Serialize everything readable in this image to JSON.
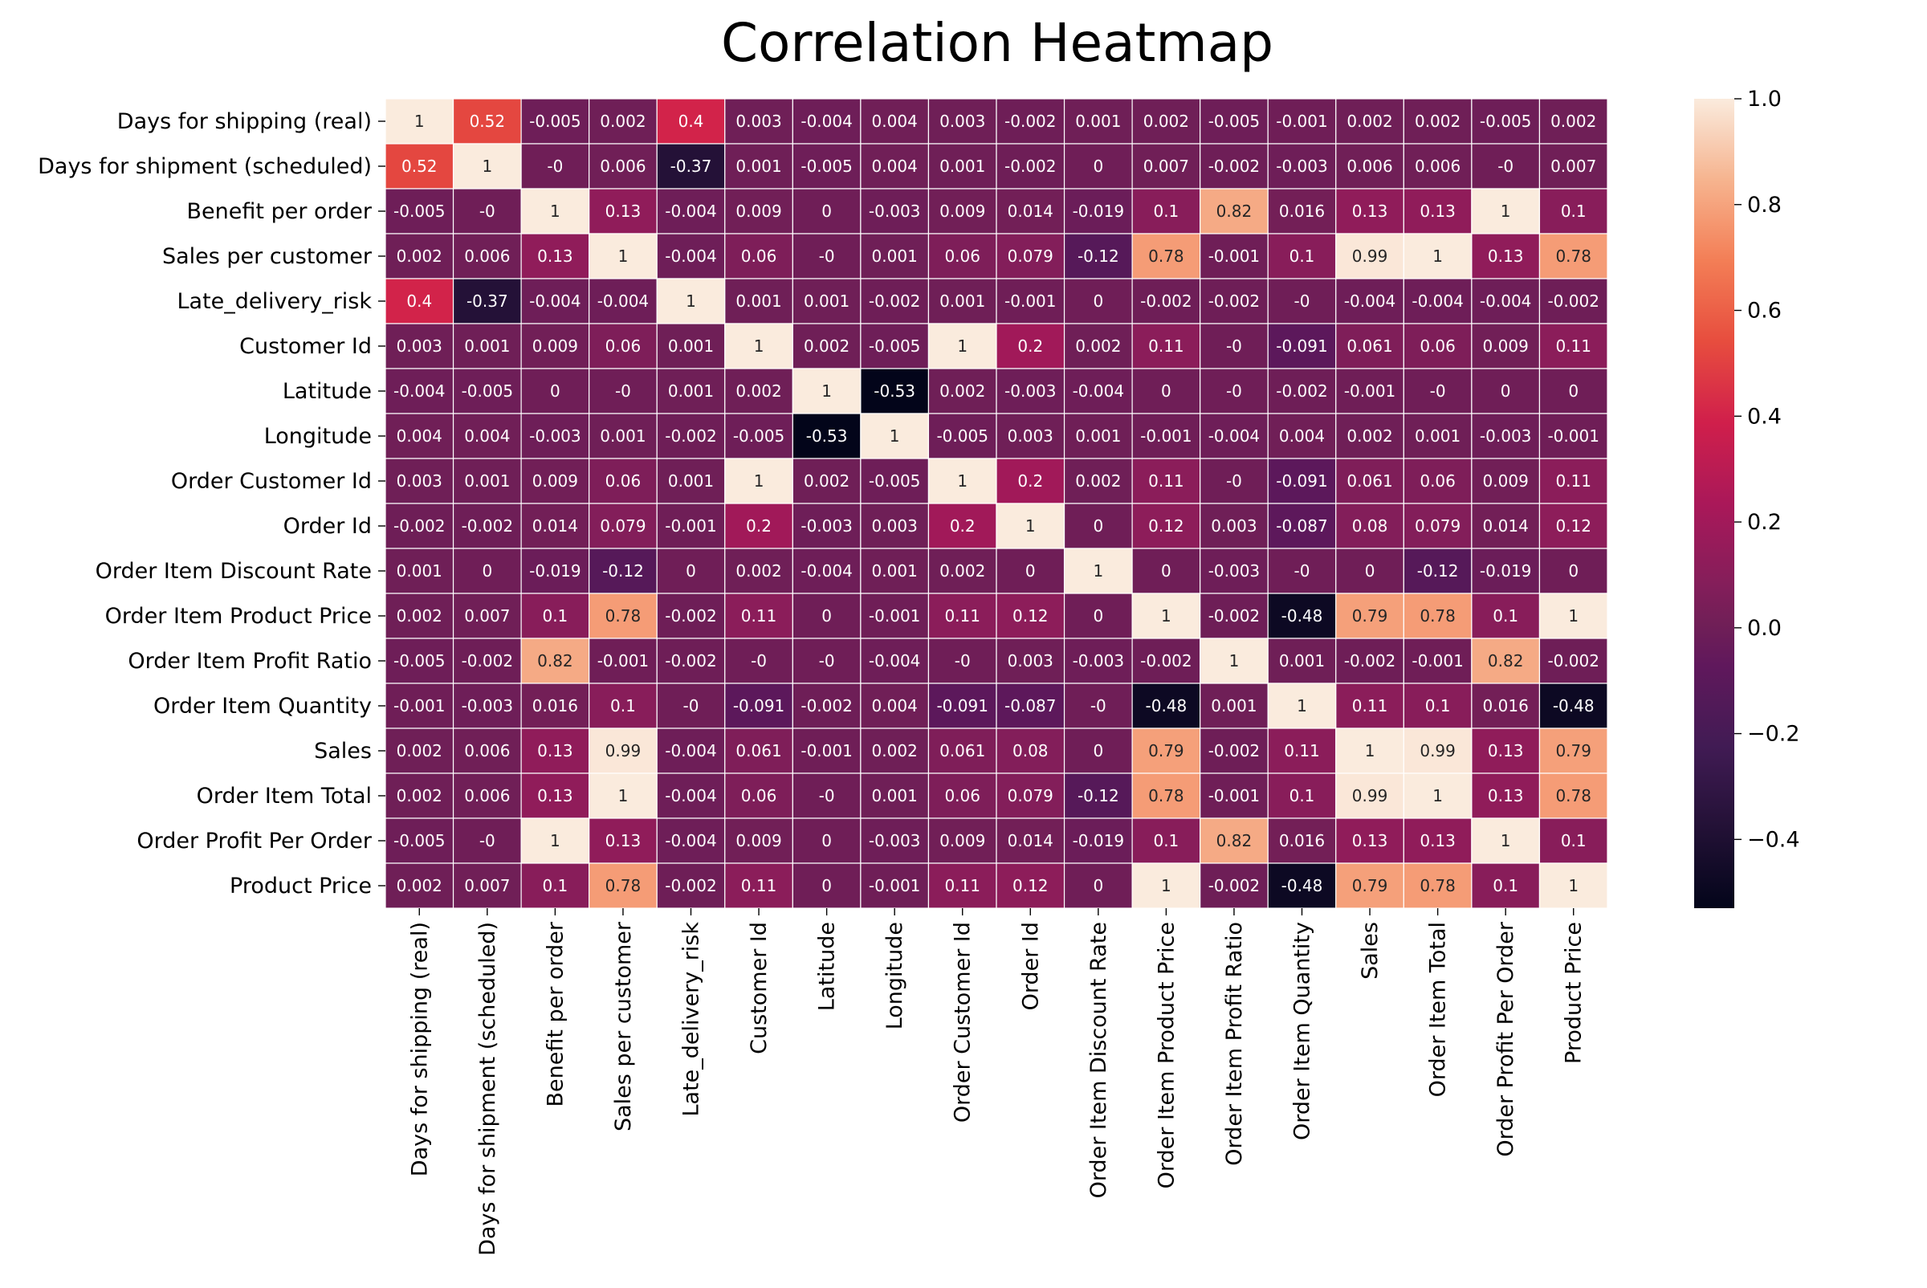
{
  "chart_data": {
    "type": "heatmap",
    "title": "Correlation Heatmap",
    "xlabel": "",
    "ylabel": "",
    "labels": [
      "Days for shipping (real)",
      "Days for shipment (scheduled)",
      "Benefit per order",
      "Sales per customer",
      "Late_delivery_risk",
      "Customer Id",
      "Latitude",
      "Longitude",
      "Order Customer Id",
      "Order Id",
      "Order Item Discount Rate",
      "Order Item Product Price",
      "Order Item Profit Ratio",
      "Order Item Quantity",
      "Sales",
      "Order Item Total",
      "Order Profit Per Order",
      "Product Price"
    ],
    "values": [
      [
        "1",
        "0.52",
        "-0.005",
        "0.002",
        "0.4",
        "0.003",
        "-0.004",
        "0.004",
        "0.003",
        "-0.002",
        "0.001",
        "0.002",
        "-0.005",
        "-0.001",
        "0.002",
        "0.002",
        "-0.005",
        "0.002"
      ],
      [
        "0.52",
        "1",
        "-0",
        "0.006",
        "-0.37",
        "0.001",
        "-0.005",
        "0.004",
        "0.001",
        "-0.002",
        "0",
        "0.007",
        "-0.002",
        "-0.003",
        "0.006",
        "0.006",
        "-0",
        "0.007"
      ],
      [
        "-0.005",
        "-0",
        "1",
        "0.13",
        "-0.004",
        "0.009",
        "0",
        "-0.003",
        "0.009",
        "0.014",
        "-0.019",
        "0.1",
        "0.82",
        "0.016",
        "0.13",
        "0.13",
        "1",
        "0.1"
      ],
      [
        "0.002",
        "0.006",
        "0.13",
        "1",
        "-0.004",
        "0.06",
        "-0",
        "0.001",
        "0.06",
        "0.079",
        "-0.12",
        "0.78",
        "-0.001",
        "0.1",
        "0.99",
        "1",
        "0.13",
        "0.78"
      ],
      [
        "0.4",
        "-0.37",
        "-0.004",
        "-0.004",
        "1",
        "0.001",
        "0.001",
        "-0.002",
        "0.001",
        "-0.001",
        "0",
        "-0.002",
        "-0.002",
        "-0",
        "-0.004",
        "-0.004",
        "-0.004",
        "-0.002"
      ],
      [
        "0.003",
        "0.001",
        "0.009",
        "0.06",
        "0.001",
        "1",
        "0.002",
        "-0.005",
        "1",
        "0.2",
        "0.002",
        "0.11",
        "-0",
        "-0.091",
        "0.061",
        "0.06",
        "0.009",
        "0.11"
      ],
      [
        "-0.004",
        "-0.005",
        "0",
        "-0",
        "0.001",
        "0.002",
        "1",
        "-0.53",
        "0.002",
        "-0.003",
        "-0.004",
        "0",
        "-0",
        "-0.002",
        "-0.001",
        "-0",
        "0",
        "0"
      ],
      [
        "0.004",
        "0.004",
        "-0.003",
        "0.001",
        "-0.002",
        "-0.005",
        "-0.53",
        "1",
        "-0.005",
        "0.003",
        "0.001",
        "-0.001",
        "-0.004",
        "0.004",
        "0.002",
        "0.001",
        "-0.003",
        "-0.001"
      ],
      [
        "0.003",
        "0.001",
        "0.009",
        "0.06",
        "0.001",
        "1",
        "0.002",
        "-0.005",
        "1",
        "0.2",
        "0.002",
        "0.11",
        "-0",
        "-0.091",
        "0.061",
        "0.06",
        "0.009",
        "0.11"
      ],
      [
        "-0.002",
        "-0.002",
        "0.014",
        "0.079",
        "-0.001",
        "0.2",
        "-0.003",
        "0.003",
        "0.2",
        "1",
        "0",
        "0.12",
        "0.003",
        "-0.087",
        "0.08",
        "0.079",
        "0.014",
        "0.12"
      ],
      [
        "0.001",
        "0",
        "-0.019",
        "-0.12",
        "0",
        "0.002",
        "-0.004",
        "0.001",
        "0.002",
        "0",
        "1",
        "0",
        "-0.003",
        "-0",
        "0",
        "-0.12",
        "-0.019",
        "0"
      ],
      [
        "0.002",
        "0.007",
        "0.1",
        "0.78",
        "-0.002",
        "0.11",
        "0",
        "-0.001",
        "0.11",
        "0.12",
        "0",
        "1",
        "-0.002",
        "-0.48",
        "0.79",
        "0.78",
        "0.1",
        "1"
      ],
      [
        "-0.005",
        "-0.002",
        "0.82",
        "-0.001",
        "-0.002",
        "-0",
        "-0",
        "-0.004",
        "-0",
        "0.003",
        "-0.003",
        "-0.002",
        "1",
        "0.001",
        "-0.002",
        "-0.001",
        "0.82",
        "-0.002"
      ],
      [
        "-0.001",
        "-0.003",
        "0.016",
        "0.1",
        "-0",
        "-0.091",
        "-0.002",
        "0.004",
        "-0.091",
        "-0.087",
        "-0",
        "-0.48",
        "0.001",
        "1",
        "0.11",
        "0.1",
        "0.016",
        "-0.48"
      ],
      [
        "0.002",
        "0.006",
        "0.13",
        "0.99",
        "-0.004",
        "0.061",
        "-0.001",
        "0.002",
        "0.061",
        "0.08",
        "0",
        "0.79",
        "-0.002",
        "0.11",
        "1",
        "0.99",
        "0.13",
        "0.79"
      ],
      [
        "0.002",
        "0.006",
        "0.13",
        "1",
        "-0.004",
        "0.06",
        "-0",
        "0.001",
        "0.06",
        "0.079",
        "-0.12",
        "0.78",
        "-0.001",
        "0.1",
        "0.99",
        "1",
        "0.13",
        "0.78"
      ],
      [
        "-0.005",
        "-0",
        "1",
        "0.13",
        "-0.004",
        "0.009",
        "0",
        "-0.003",
        "0.009",
        "0.014",
        "-0.019",
        "0.1",
        "0.82",
        "0.016",
        "0.13",
        "0.13",
        "1",
        "0.1"
      ],
      [
        "0.002",
        "0.007",
        "0.1",
        "0.78",
        "-0.002",
        "0.11",
        "0",
        "-0.001",
        "0.11",
        "0.12",
        "0",
        "1",
        "-0.002",
        "-0.48",
        "0.79",
        "0.78",
        "0.1",
        "1"
      ]
    ],
    "colorbar": {
      "min": -0.53,
      "max": 1.0,
      "ticks": [
        "−0.4",
        "−0.2",
        "0.0",
        "0.2",
        "0.4",
        "0.6",
        "0.8",
        "1.0"
      ],
      "tick_values": [
        -0.4,
        -0.2,
        0.0,
        0.2,
        0.4,
        0.6,
        0.8,
        1.0
      ]
    },
    "colormap": "rocket",
    "annotations": true,
    "grid": true
  }
}
